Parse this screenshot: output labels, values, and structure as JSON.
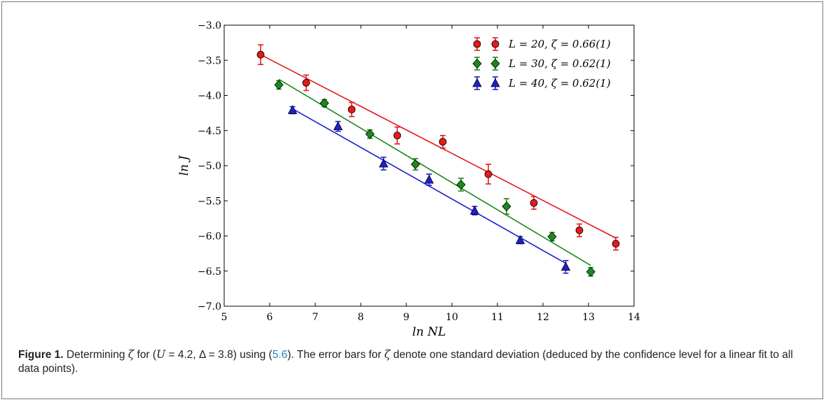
{
  "figure": {
    "label": "Figure 1.",
    "caption_parts": [
      {
        "t": " Determining ",
        "s": "text"
      },
      {
        "t": "ζ",
        "s": "italic"
      },
      {
        "t": " for (",
        "s": "text"
      },
      {
        "t": "U",
        "s": "italic"
      },
      {
        "t": " = 4.2, Δ = 3.8) using (",
        "s": "text"
      },
      {
        "t": "5.6",
        "s": "ref"
      },
      {
        "t": "). The error bars for ",
        "s": "text"
      },
      {
        "t": "ζ",
        "s": "italic"
      },
      {
        "t": " denote one standard deviation (deduced by the confidence level for a linear fit to all data points).",
        "s": "text"
      }
    ]
  },
  "chart_data": {
    "type": "scatter",
    "xlabel": "ln NL",
    "ylabel": "ln J",
    "xlim": [
      5,
      14
    ],
    "ylim": [
      -7.0,
      -3.0
    ],
    "xticks": [
      5,
      6,
      7,
      8,
      9,
      10,
      11,
      12,
      13,
      14
    ],
    "yticks": [
      -3.0,
      -3.5,
      -4.0,
      -4.5,
      -5.0,
      -5.5,
      -6.0,
      -6.5,
      -7.0
    ],
    "ytick_labels": [
      "−3.0",
      "−3.5",
      "−4.0",
      "−4.5",
      "−5.0",
      "−5.5",
      "−6.0",
      "−6.5",
      "−7.0"
    ],
    "legend_position": "top-right",
    "grid": false,
    "series": [
      {
        "name": "L = 20,  ζ = 0.66(1)",
        "color": "#e41a1c",
        "marker": "circle",
        "x": [
          5.8,
          6.8,
          7.8,
          8.8,
          9.8,
          10.8,
          11.8,
          12.8,
          13.6
        ],
        "y": [
          -3.42,
          -3.82,
          -4.2,
          -4.57,
          -4.66,
          -5.12,
          -5.53,
          -5.92,
          -6.11
        ],
        "err": [
          0.14,
          0.11,
          0.1,
          0.12,
          0.09,
          0.14,
          0.09,
          0.09,
          0.09
        ],
        "fit": {
          "x": [
            5.8,
            13.6
          ],
          "y": [
            -3.42,
            -6.03
          ]
        }
      },
      {
        "name": "L = 30,  ζ = 0.62(1)",
        "color": "#1a8a1a",
        "marker": "diamond",
        "x": [
          6.2,
          7.2,
          8.2,
          9.2,
          10.2,
          11.2,
          12.2,
          13.05
        ],
        "y": [
          -3.85,
          -4.11,
          -4.55,
          -4.98,
          -5.27,
          -5.58,
          -6.01,
          -6.51
        ],
        "err": [
          0.06,
          0.05,
          0.06,
          0.08,
          0.09,
          0.11,
          0.06,
          0.06
        ],
        "fit": {
          "x": [
            6.2,
            13.05
          ],
          "y": [
            -3.77,
            -6.42
          ]
        }
      },
      {
        "name": "L = 40,  ζ = 0.62(1)",
        "color": "#1f1fcf",
        "marker": "triangle",
        "x": [
          6.5,
          7.5,
          8.5,
          9.5,
          10.5,
          11.5,
          12.5
        ],
        "y": [
          -4.21,
          -4.44,
          -4.97,
          -5.2,
          -5.64,
          -6.06,
          -6.44
        ],
        "err": [
          0.05,
          0.07,
          0.09,
          0.08,
          0.06,
          0.05,
          0.09
        ],
        "fit": {
          "x": [
            6.5,
            12.5
          ],
          "y": [
            -4.19,
            -6.39
          ]
        }
      }
    ]
  }
}
